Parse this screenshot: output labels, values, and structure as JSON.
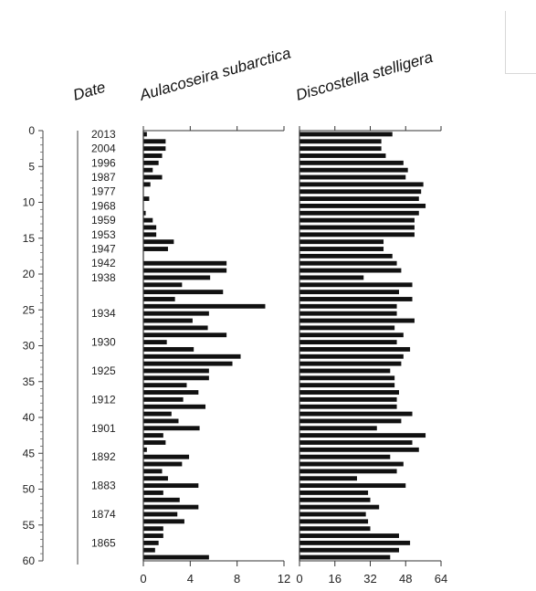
{
  "chart_data": {
    "type": "bar",
    "orientation": "horizontal",
    "depth_axis": {
      "ylim": [
        0,
        60
      ],
      "ticks": [
        0,
        5,
        10,
        15,
        20,
        25,
        30,
        35,
        40,
        45,
        50,
        55,
        60
      ],
      "tick_labels": [
        "0",
        "5",
        "10",
        "15",
        "20",
        "25",
        "30",
        "35",
        "40",
        "45",
        "50",
        "55",
        "60"
      ]
    },
    "date_column": {
      "title": "Date",
      "labels": [
        {
          "depth": 0.5,
          "label": "2013"
        },
        {
          "depth": 2.5,
          "label": "2004"
        },
        {
          "depth": 4.5,
          "label": "1996"
        },
        {
          "depth": 6.5,
          "label": "1987"
        },
        {
          "depth": 8.5,
          "label": "1977"
        },
        {
          "depth": 10.5,
          "label": "1968"
        },
        {
          "depth": 12.5,
          "label": "1959"
        },
        {
          "depth": 14.5,
          "label": "1953"
        },
        {
          "depth": 16.5,
          "label": "1947"
        },
        {
          "depth": 18.5,
          "label": "1942"
        },
        {
          "depth": 20.5,
          "label": "1938"
        },
        {
          "depth": 25.5,
          "label": "1934"
        },
        {
          "depth": 29.5,
          "label": "1930"
        },
        {
          "depth": 33.5,
          "label": "1925"
        },
        {
          "depth": 37.5,
          "label": "1912"
        },
        {
          "depth": 41.5,
          "label": "1901"
        },
        {
          "depth": 45.5,
          "label": "1892"
        },
        {
          "depth": 49.5,
          "label": "1883"
        },
        {
          "depth": 53.5,
          "label": "1874"
        },
        {
          "depth": 57.5,
          "label": "1865"
        }
      ]
    },
    "depths": [
      0,
      1,
      2,
      3,
      4,
      5,
      6,
      7,
      8,
      9,
      10,
      11,
      12,
      13,
      14,
      15,
      16,
      17,
      18,
      19,
      20,
      21,
      22,
      23,
      24,
      25,
      26,
      27,
      28,
      29,
      30,
      31,
      32,
      33,
      34,
      35,
      36,
      37,
      38,
      39,
      40,
      41,
      42,
      43,
      44,
      45,
      46,
      47,
      48,
      49,
      50,
      51,
      52,
      53,
      54,
      55,
      56,
      57,
      58,
      59
    ],
    "series": [
      {
        "name": "Aulacoseira subarctica",
        "xlim": [
          0,
          12
        ],
        "ticks": [
          0,
          4,
          8,
          12
        ],
        "tick_labels": [
          "0",
          "4",
          "8",
          "12"
        ],
        "values": [
          0.3,
          1.9,
          1.9,
          1.6,
          1.3,
          0.8,
          1.6,
          0.6,
          0.0,
          0.5,
          0.0,
          0.2,
          0.8,
          1.1,
          1.1,
          2.6,
          2.1,
          0.0,
          7.1,
          7.1,
          5.7,
          3.3,
          6.8,
          2.7,
          10.4,
          5.6,
          4.2,
          5.5,
          7.1,
          2.0,
          4.3,
          8.3,
          7.6,
          5.6,
          5.6,
          3.7,
          4.7,
          3.4,
          5.3,
          2.4,
          3.0,
          4.8,
          1.7,
          1.9,
          0.3,
          3.9,
          3.3,
          1.6,
          2.1,
          4.7,
          1.7,
          3.1,
          4.7,
          2.9,
          3.5,
          1.7,
          1.7,
          1.3,
          1.0,
          5.6
        ]
      },
      {
        "name": "Discostella stelligera",
        "xlim": [
          0,
          64
        ],
        "ticks": [
          0,
          16,
          32,
          48,
          64
        ],
        "tick_labels": [
          "0",
          "16",
          "32",
          "48",
          "64"
        ],
        "values": [
          42,
          37,
          37,
          39,
          47,
          49,
          48,
          56,
          55,
          54,
          57,
          54,
          52,
          52,
          52,
          38,
          38,
          42,
          44,
          46,
          29,
          51,
          45,
          51,
          44,
          44,
          52,
          43,
          47,
          44,
          50,
          47,
          46,
          41,
          43,
          43,
          45,
          44,
          44,
          51,
          46,
          35,
          57,
          51,
          54,
          41,
          47,
          44,
          26,
          48,
          31,
          32,
          36,
          30,
          31,
          32,
          45,
          50,
          45,
          41
        ]
      }
    ]
  }
}
